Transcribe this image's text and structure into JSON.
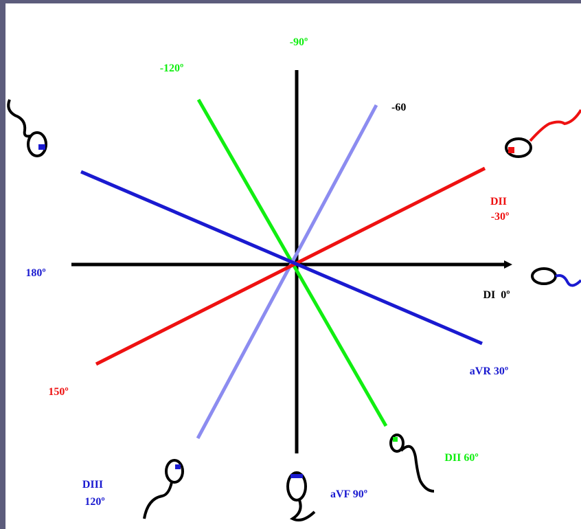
{
  "labels": {
    "minus90": "-90º",
    "minus120": "-120º",
    "minus60": "-60",
    "dii_top": "DII",
    "minus30": "-30º",
    "deg180": "180º",
    "di0": "DI  0º",
    "avr30": "aVR 30º",
    "deg150": "150º",
    "dii60": "DII 60º",
    "diii": "DIII",
    "deg120": "120º",
    "avf90": "aVF 90º"
  }
}
